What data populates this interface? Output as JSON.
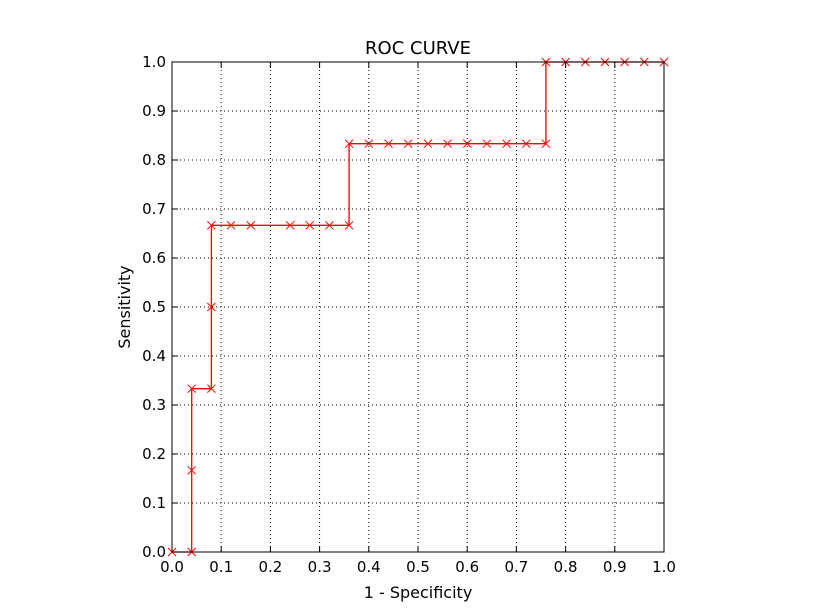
{
  "chart_data": {
    "type": "line",
    "title": "ROC CURVE",
    "xlabel": "1 - Specificity",
    "ylabel": "Sensitivity",
    "xlim": [
      0.0,
      1.0
    ],
    "ylim": [
      0.0,
      1.0
    ],
    "grid": true,
    "x_ticks": [
      "0.0",
      "0.1",
      "0.2",
      "0.3",
      "0.4",
      "0.5",
      "0.6",
      "0.7",
      "0.8",
      "0.9",
      "1.0"
    ],
    "y_ticks": [
      "0.0",
      "0.1",
      "0.2",
      "0.3",
      "0.4",
      "0.5",
      "0.6",
      "0.7",
      "0.8",
      "0.9",
      "1.0"
    ],
    "series": [
      {
        "color": "#ff0000",
        "marker": "x",
        "x": [
          0.0,
          0.04,
          0.04,
          0.04,
          0.08,
          0.08,
          0.08,
          0.12,
          0.16,
          0.24,
          0.28,
          0.32,
          0.36,
          0.36,
          0.4,
          0.44,
          0.48,
          0.52,
          0.56,
          0.6,
          0.64,
          0.68,
          0.72,
          0.76,
          0.76,
          0.8,
          0.84,
          0.88,
          0.92,
          0.96,
          1.0
        ],
        "y": [
          0.0,
          0.0,
          0.1667,
          0.3333,
          0.3333,
          0.5,
          0.6667,
          0.6667,
          0.6667,
          0.6667,
          0.6667,
          0.6667,
          0.6667,
          0.8333,
          0.8333,
          0.8333,
          0.8333,
          0.8333,
          0.8333,
          0.8333,
          0.8333,
          0.8333,
          0.8333,
          0.8333,
          1.0,
          1.0,
          1.0,
          1.0,
          1.0,
          1.0,
          1.0
        ]
      }
    ]
  }
}
